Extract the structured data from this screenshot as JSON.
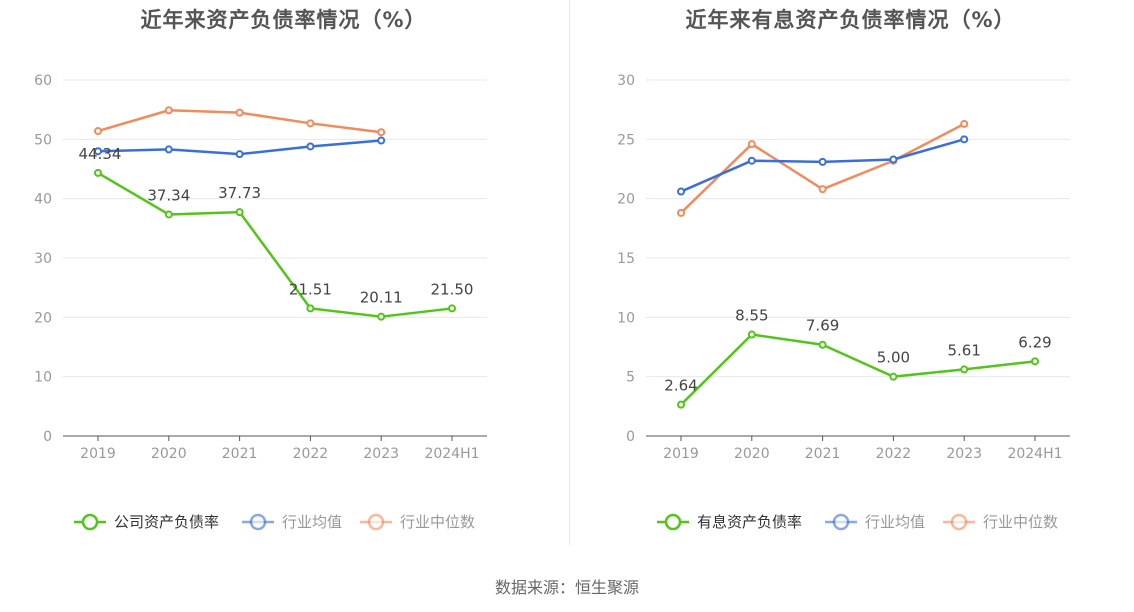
{
  "source_label": "数据来源：恒生聚源",
  "chart_data": [
    {
      "type": "line",
      "title": "近年来资产负债率情况（%）",
      "categories": [
        "2019",
        "2020",
        "2021",
        "2022",
        "2023",
        "2024H1"
      ],
      "ylim": [
        0,
        60
      ],
      "yticks": [
        "0",
        "10",
        "20",
        "30",
        "40",
        "50",
        "60"
      ],
      "grid": true,
      "legend_position": "bottom",
      "series": [
        {
          "name": "公司资产负债率",
          "color": "#52c41a",
          "values": [
            44.34,
            37.34,
            37.73,
            21.51,
            20.11,
            21.5
          ],
          "labels": [
            "44.34",
            "37.34",
            "37.73",
            "21.51",
            "20.11",
            "21.50"
          ]
        },
        {
          "name": "行业均值",
          "color": "#3a6fd8",
          "values": [
            48.0,
            48.3,
            47.5,
            48.8,
            49.8,
            null
          ]
        },
        {
          "name": "行业中位数",
          "color": "#f28a5c",
          "values": [
            51.4,
            54.9,
            54.5,
            52.7,
            51.2,
            null
          ]
        }
      ]
    },
    {
      "type": "line",
      "title": "近年来有息资产负债率情况（%）",
      "categories": [
        "2019",
        "2020",
        "2021",
        "2022",
        "2023",
        "2024H1"
      ],
      "ylim": [
        0,
        30
      ],
      "yticks": [
        "0",
        "5",
        "10",
        "15",
        "20",
        "25",
        "30"
      ],
      "grid": true,
      "legend_position": "bottom",
      "series": [
        {
          "name": "有息资产负债率",
          "color": "#52c41a",
          "values": [
            2.64,
            8.55,
            7.69,
            5.0,
            5.61,
            6.29
          ],
          "labels": [
            "2.64",
            "8.55",
            "7.69",
            "5.00",
            "5.61",
            "6.29"
          ]
        },
        {
          "name": "行业均值",
          "color": "#3a6fd8",
          "values": [
            20.6,
            23.2,
            23.1,
            23.3,
            25.0,
            null
          ]
        },
        {
          "name": "行业中位数",
          "color": "#f28a5c",
          "values": [
            18.8,
            24.6,
            20.8,
            23.2,
            26.3,
            null
          ]
        }
      ]
    }
  ]
}
